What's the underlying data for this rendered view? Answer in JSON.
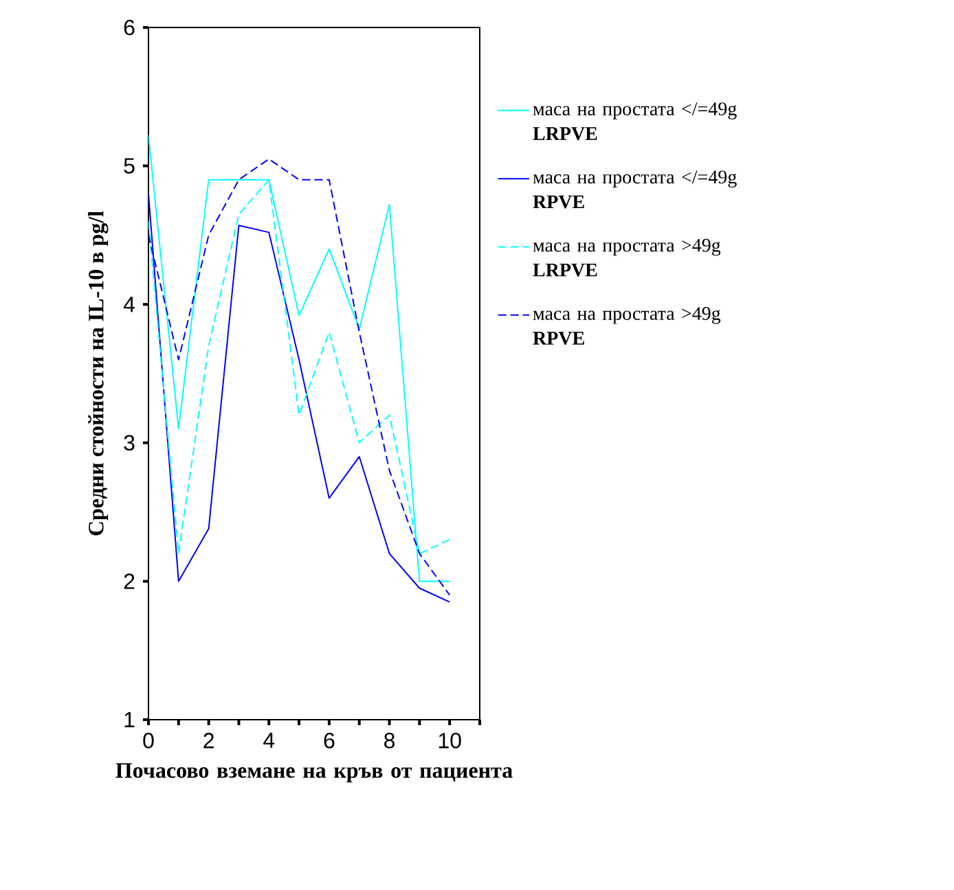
{
  "chart_data": {
    "type": "line",
    "xlabel": "Почасово вземане на кръв от пациента",
    "ylabel": "Средни стойности на IL-10 в pg/l",
    "x": [
      0,
      1,
      2,
      3,
      4,
      5,
      6,
      7,
      8,
      9,
      10
    ],
    "xlim": [
      0,
      11
    ],
    "ylim": [
      1,
      6
    ],
    "xticks": [
      0,
      {
        "value": 1,
        "label": null
      },
      2,
      {
        "value": 3,
        "label": null
      },
      4,
      {
        "value": 5,
        "label": null
      },
      6,
      {
        "value": 7,
        "label": null
      },
      8,
      {
        "value": 9,
        "label": null
      },
      10,
      {
        "value": 11,
        "label": null
      }
    ],
    "yticks": [
      1,
      2,
      3,
      4,
      5,
      6
    ],
    "grid": false,
    "legend": "right",
    "marker": "none",
    "series": [
      {
        "name": "маса на простата </=49g **LRPVE**",
        "color": "#00ffff",
        "line_style": "solid",
        "values": [
          5.22,
          3.1,
          4.9,
          4.9,
          4.9,
          3.92,
          4.4,
          3.82,
          4.72,
          2.0,
          2.0
        ]
      },
      {
        "name": "маса на простата </=49g **RPVE**",
        "color": "#0000ff",
        "line_style": "solid",
        "values": [
          4.8,
          2.0,
          2.38,
          4.57,
          4.52,
          3.6,
          2.6,
          2.9,
          2.2,
          1.95,
          1.85
        ]
      },
      {
        "name": "маса на простата >49g **LRPVE**",
        "color": "#00ffff",
        "line_style": "dashed",
        "values": [
          4.6,
          2.2,
          3.7,
          4.65,
          4.9,
          3.2,
          3.8,
          3.0,
          3.2,
          2.2,
          2.3
        ]
      },
      {
        "name": "маса на простата >49g **RPVE**",
        "color": "#0000ff",
        "line_style": "dashed",
        "values": [
          4.5,
          3.6,
          4.5,
          4.9,
          5.05,
          4.9,
          4.9,
          3.8,
          2.8,
          2.2,
          1.9
        ]
      }
    ]
  }
}
